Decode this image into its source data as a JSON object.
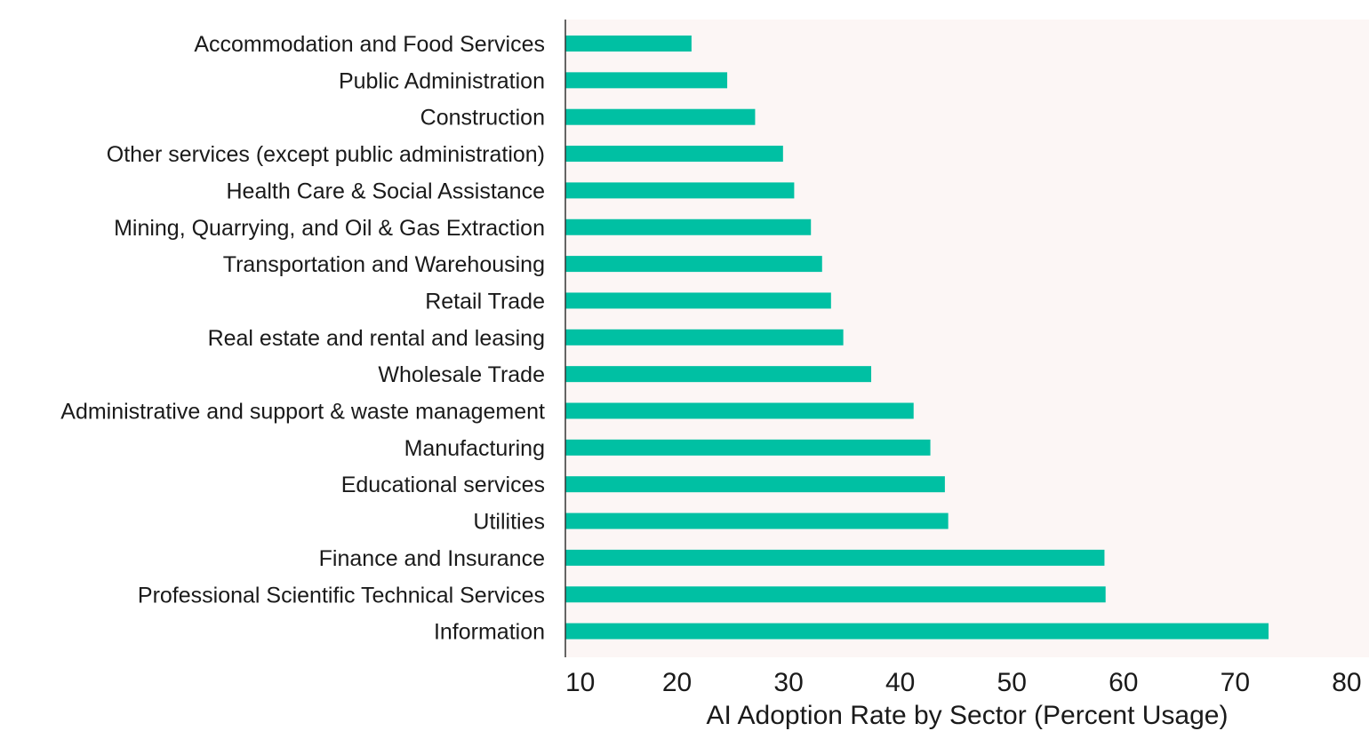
{
  "chart_data": {
    "type": "bar",
    "orientation": "horizontal",
    "categories": [
      "Accommodation and Food Services",
      "Public Administration",
      "Construction",
      "Other services (except public administration)",
      "Health Care & Social Assistance",
      "Mining, Quarrying, and Oil & Gas Extraction",
      "Transportation and Warehousing",
      "Retail Trade",
      "Real estate and rental and leasing",
      "Wholesale Trade",
      "Administrative and support & waste management",
      "Manufacturing",
      "Educational services",
      "Utilities",
      "Finance and Insurance",
      "Professional Scientific Technical Services",
      "Information"
    ],
    "values": [
      21.3,
      24.5,
      27.0,
      29.5,
      30.5,
      32.0,
      33.0,
      33.8,
      34.9,
      37.4,
      41.2,
      42.7,
      44.0,
      44.3,
      58.3,
      58.4,
      73.0
    ],
    "title": "",
    "xlabel": "AI Adoption Rate by Sector (Percent Usage)",
    "ylabel": "",
    "xlim": [
      10,
      82
    ],
    "x_ticks": [
      "10",
      "20",
      "30",
      "40",
      "50",
      "60",
      "70",
      "80"
    ],
    "grid": false,
    "legend": "none",
    "colors": {
      "bar": "#00C0A3",
      "plot_background": "#FCF6F5",
      "axis_line": "#333333",
      "text": "#1a1a1a"
    }
  }
}
